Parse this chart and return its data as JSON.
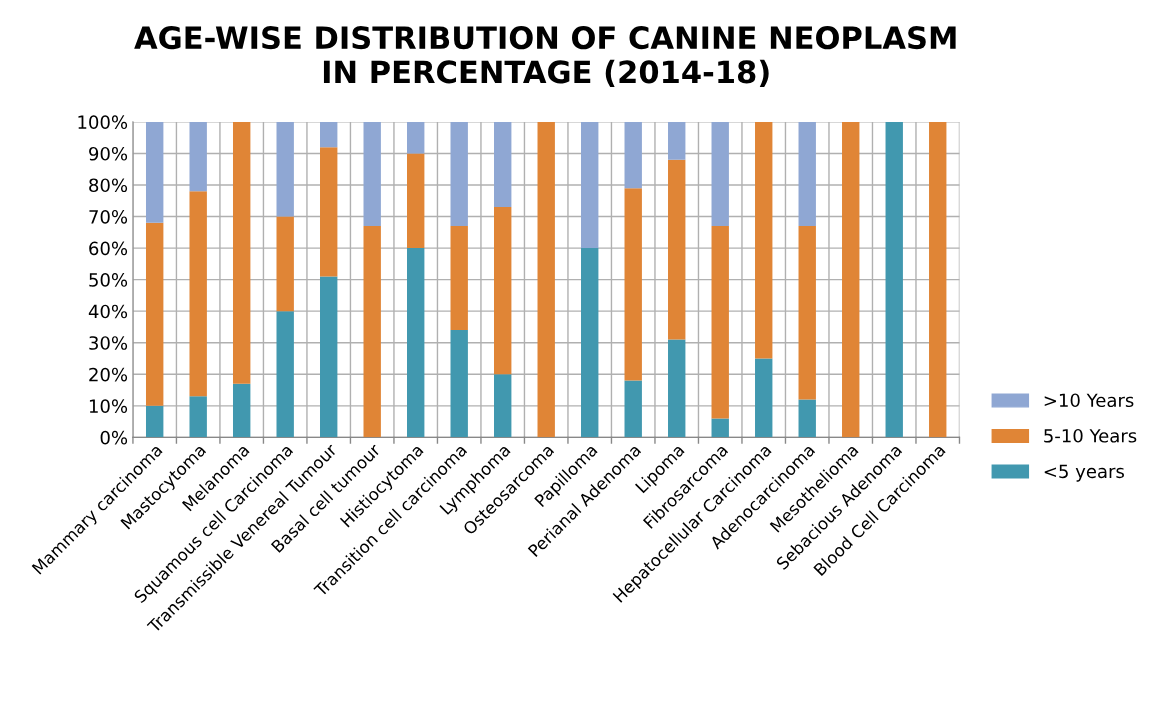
{
  "chart_data": {
    "type": "bar",
    "title": "AGE-WISE DISTRIBUTION OF CANINE NEOPLASM\nIN PERCENTAGE (2014-18)",
    "stacked": true,
    "grid": true,
    "legend": "right",
    "categories": [
      "Mammary carcinoma",
      "Mastocytoma",
      "Melanoma",
      "Squamous cell Carcinoma",
      "Transmissible Venereal Tumour",
      "Basal cell tumour",
      "Histiocytoma",
      "Transition cell carcinoma",
      "Lymphoma",
      "Osteosarcoma",
      "Papilloma",
      "Perianal Adenoma",
      "Lipoma",
      "Fibrosarcoma",
      "Hepatocellular Carcinoma",
      "Adenocarcinoma",
      "Mesothelioma",
      "Sebacious Adenoma",
      "Blood Cell Carcinoma"
    ],
    "series": [
      {
        "name": "<5 years",
        "color": "#4198af",
        "values": [
          10,
          13,
          17,
          40,
          51,
          0,
          60,
          34,
          20,
          0,
          60,
          18,
          31,
          6,
          25,
          12,
          0,
          100,
          0
        ]
      },
      {
        "name": "5-10 Years",
        "color": "#e08536",
        "values": [
          58,
          65,
          83,
          30,
          41,
          67,
          30,
          33,
          53,
          100,
          0,
          61,
          57,
          61,
          75,
          55,
          100,
          0,
          100
        ]
      },
      {
        "name": ">10 Years",
        "color": "#8fa7d3",
        "values": [
          32,
          22,
          0,
          30,
          8,
          33,
          10,
          33,
          27,
          0,
          40,
          21,
          12,
          33,
          0,
          33,
          0,
          0,
          0
        ]
      }
    ],
    "ylim": [
      0,
      100
    ],
    "yticks": [
      {
        "value": 0,
        "label": "0%"
      },
      {
        "value": 10,
        "label": "10%"
      },
      {
        "value": 20,
        "label": "20%"
      },
      {
        "value": 30,
        "label": "30%"
      },
      {
        "value": 40,
        "label": "40%"
      },
      {
        "value": 50,
        "label": "50%"
      },
      {
        "value": 60,
        "label": "60%"
      },
      {
        "value": 70,
        "label": "70%"
      },
      {
        "value": 80,
        "label": "80%"
      },
      {
        "value": 90,
        "label": "90%"
      },
      {
        "value": 100,
        "label": "100%"
      }
    ]
  }
}
